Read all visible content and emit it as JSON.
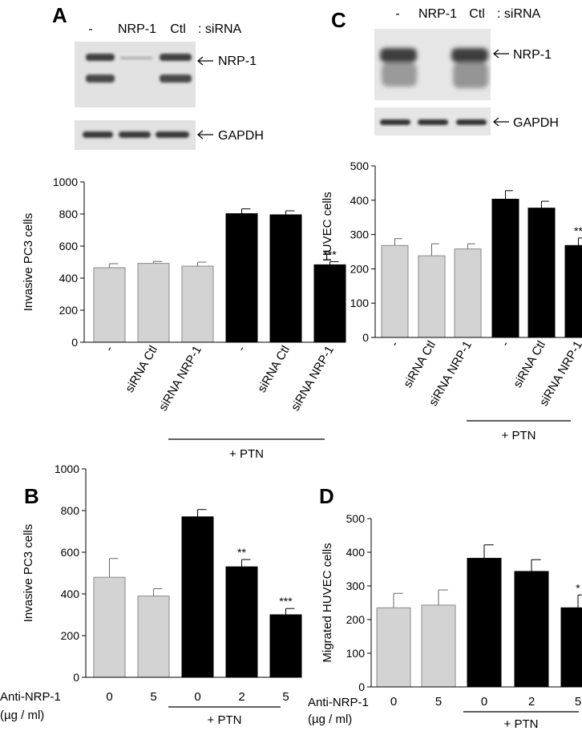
{
  "panels": {
    "A": {
      "letter": "A"
    },
    "B": {
      "letter": "B"
    },
    "C": {
      "letter": "C"
    },
    "D": {
      "letter": "D"
    }
  },
  "blots": {
    "A": {
      "lanes": [
        "-",
        "NRP-1",
        "Ctl"
      ],
      "suffix": ": siRNA",
      "target": "NRP-1",
      "loading": "GAPDH"
    },
    "C": {
      "lanes": [
        "-",
        "NRP-1",
        "Ctl"
      ],
      "suffix": ": siRNA",
      "target": "NRP-1",
      "loading": "GAPDH"
    }
  },
  "colors": {
    "control_bar": "#d3d3d3",
    "ptn_bar": "#000000",
    "blot_bg": "#e2e2e2"
  },
  "chart_data": [
    {
      "panel": "A",
      "type": "bar",
      "categories": [
        "-",
        "siRNA Ctl",
        "siRNA NRP-1",
        "-",
        "siRNA Ctl",
        "siRNA NRP-1"
      ],
      "values": [
        465,
        492,
        475,
        802,
        795,
        483
      ],
      "errors": [
        25,
        12,
        25,
        30,
        25,
        20
      ],
      "fill": [
        "control",
        "control",
        "control",
        "ptn",
        "ptn",
        "ptn"
      ],
      "significance": [
        "",
        "",
        "",
        "",
        "",
        "***"
      ],
      "ylabel": "Invasive PC3 cells",
      "ylim": [
        0,
        1000
      ],
      "yticks": [
        0,
        200,
        400,
        600,
        800,
        1000
      ],
      "group_label": "+ PTN"
    },
    {
      "panel": "C",
      "type": "bar",
      "categories": [
        "-",
        "siRNA Ctl",
        "siRNA NRP-1",
        "-",
        "siRNA Ctl",
        "siRNA NRP-1"
      ],
      "values": [
        268,
        238,
        258,
        403,
        377,
        268
      ],
      "errors": [
        20,
        35,
        15,
        25,
        20,
        22
      ],
      "fill": [
        "control",
        "control",
        "control",
        "ptn",
        "ptn",
        "ptn"
      ],
      "significance": [
        "",
        "",
        "",
        "",
        "",
        "**"
      ],
      "ylabel": "Migrated HUVEC cells",
      "ylim": [
        0,
        500
      ],
      "yticks": [
        0,
        100,
        200,
        300,
        400,
        500
      ],
      "group_label": "+ PTN"
    },
    {
      "panel": "B",
      "type": "bar",
      "categories": [
        "0",
        "5",
        "0",
        "2",
        "5"
      ],
      "values": [
        480,
        390,
        770,
        530,
        300
      ],
      "errors": [
        90,
        35,
        35,
        35,
        30
      ],
      "fill": [
        "control",
        "control",
        "ptn",
        "ptn",
        "ptn"
      ],
      "significance": [
        "",
        "",
        "",
        "**",
        "***"
      ],
      "ylabel": "Invasive  PC3 cells",
      "xlabel": [
        "Anti-NRP-1",
        "(µg / ml)"
      ],
      "ylim": [
        0,
        1000
      ],
      "yticks": [
        0,
        200,
        400,
        600,
        800,
        1000
      ],
      "group_label": "+ PTN"
    },
    {
      "panel": "D",
      "type": "bar",
      "categories": [
        "0",
        "5",
        "0",
        "2",
        "5"
      ],
      "values": [
        235,
        243,
        382,
        343,
        235
      ],
      "errors": [
        43,
        45,
        40,
        35,
        38
      ],
      "fill": [
        "control",
        "control",
        "ptn",
        "ptn",
        "ptn"
      ],
      "significance": [
        "",
        "",
        "",
        "",
        "*"
      ],
      "ylabel": "Migrated HUVEC cells",
      "xlabel": [
        "Anti-NRP-1",
        "(µg / ml)"
      ],
      "ylim": [
        0,
        500
      ],
      "yticks": [
        0,
        100,
        200,
        300,
        400,
        500
      ],
      "group_label": "+ PTN"
    }
  ]
}
